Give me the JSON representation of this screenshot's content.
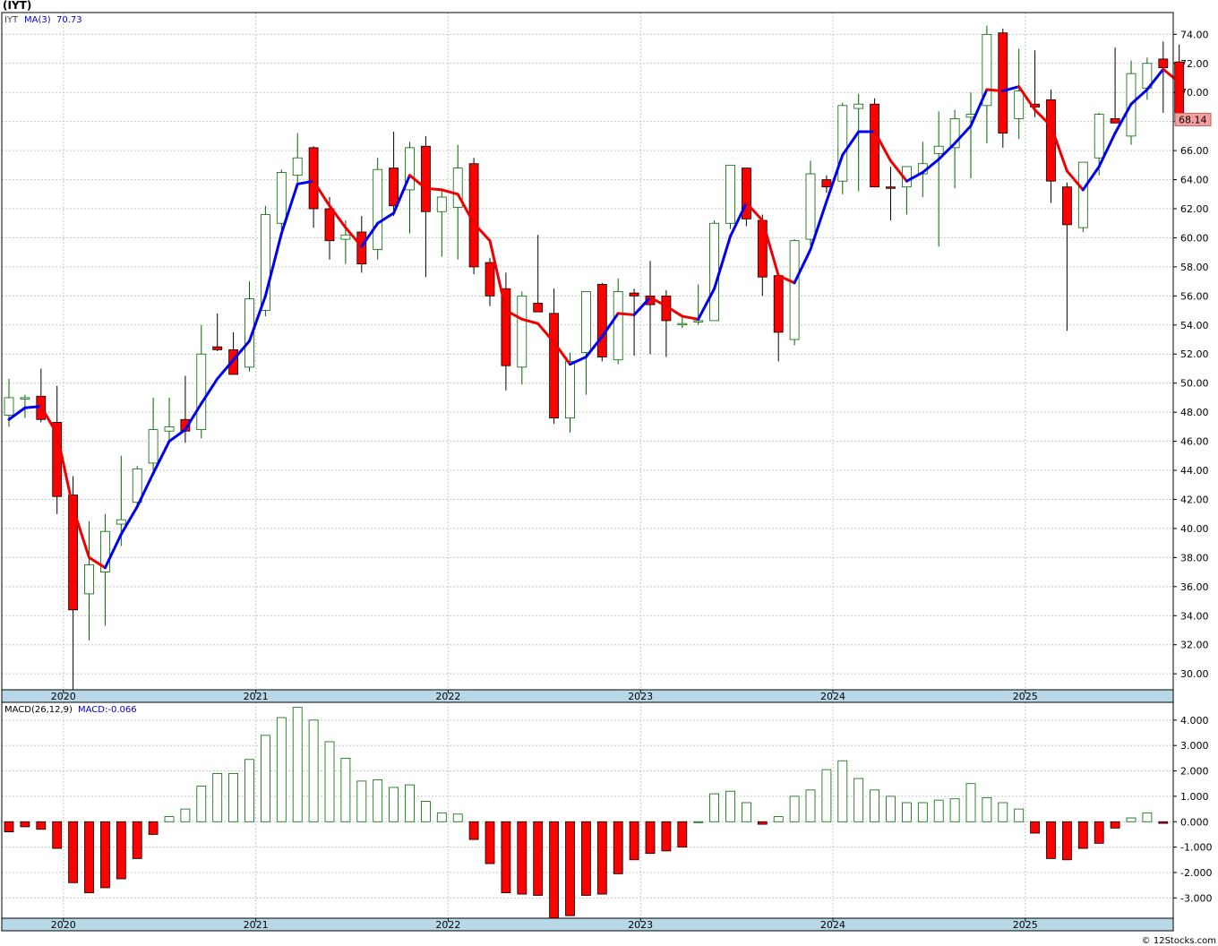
{
  "title": "(IYT)",
  "credit": "© 12Stocks.com",
  "colors": {
    "up_ma": "#0000ee",
    "down_ma": "#ee0000",
    "up_candle_border": "#006600",
    "down_candle": "#ff0000",
    "axis_band": "#b8d8e8",
    "grid": "#c8c8c8"
  },
  "chart_data": [
    {
      "type": "candlestick",
      "symbol": "IYT",
      "legend": {
        "symbol": "IYT",
        "ma_label": "MA(3)",
        "ma_value": "70.73"
      },
      "last_price_label": "68.14",
      "ylim": [
        28.9,
        75.5
      ],
      "yticks": [
        "74.00",
        "72.00",
        "70.00",
        "68.00",
        "66.00",
        "64.00",
        "62.00",
        "60.00",
        "58.00",
        "56.00",
        "54.00",
        "52.00",
        "50.00",
        "48.00",
        "46.00",
        "44.00",
        "42.00",
        "40.00",
        "38.00",
        "36.00",
        "34.00",
        "32.00",
        "30.00"
      ],
      "x_years": [
        {
          "label": "2020",
          "index": 2
        },
        {
          "label": "2021",
          "index": 14
        },
        {
          "label": "2022",
          "index": 26
        },
        {
          "label": "2023",
          "index": 38
        },
        {
          "label": "2024",
          "index": 50
        },
        {
          "label": "2025",
          "index": 62
        }
      ],
      "ohlc": [
        [
          47.8,
          50.3,
          47.0,
          49.0
        ],
        [
          49.0,
          49.2,
          47.6,
          49.0
        ],
        [
          49.1,
          51.0,
          47.3,
          47.5
        ],
        [
          47.3,
          49.8,
          41.0,
          42.2
        ],
        [
          42.3,
          43.6,
          28.4,
          34.4
        ],
        [
          35.5,
          40.5,
          32.3,
          37.5
        ],
        [
          37.0,
          41.0,
          33.3,
          39.8
        ],
        [
          40.3,
          45.0,
          38.8,
          40.6
        ],
        [
          41.8,
          44.3,
          41.6,
          44.1
        ],
        [
          44.5,
          49.0,
          44.0,
          46.8
        ],
        [
          46.7,
          49.0,
          46.0,
          47.0
        ],
        [
          47.5,
          50.5,
          45.9,
          46.7
        ],
        [
          46.8,
          54.0,
          46.2,
          52.0
        ],
        [
          52.5,
          54.8,
          52.2,
          52.3
        ],
        [
          52.3,
          53.5,
          50.6,
          50.6
        ],
        [
          51.1,
          57.0,
          50.8,
          55.8
        ],
        [
          55.0,
          62.2,
          54.6,
          61.6
        ],
        [
          61.0,
          64.7,
          60.1,
          64.5
        ],
        [
          64.3,
          67.2,
          63.8,
          65.5
        ],
        [
          66.2,
          66.3,
          60.7,
          62.0
        ],
        [
          62.0,
          62.8,
          58.5,
          59.8
        ],
        [
          59.9,
          61.2,
          58.2,
          60.2
        ],
        [
          60.4,
          61.5,
          57.6,
          58.2
        ],
        [
          59.2,
          65.5,
          58.5,
          64.7
        ],
        [
          64.8,
          67.3,
          61.5,
          62.2
        ],
        [
          63.3,
          66.6,
          60.3,
          66.2
        ],
        [
          66.3,
          67.0,
          57.3,
          61.8
        ],
        [
          61.8,
          63.2,
          58.7,
          62.8
        ],
        [
          62.1,
          66.4,
          58.5,
          64.8
        ],
        [
          65.1,
          65.5,
          57.5,
          58.0
        ],
        [
          58.3,
          58.6,
          55.3,
          56.0
        ],
        [
          56.5,
          57.6,
          49.5,
          51.2
        ],
        [
          51.1,
          56.3,
          49.9,
          56.0
        ],
        [
          55.5,
          60.2,
          55.0,
          54.9
        ],
        [
          54.8,
          56.5,
          47.2,
          47.6
        ],
        [
          47.6,
          52.1,
          46.6,
          51.5
        ],
        [
          52.1,
          56.3,
          49.2,
          56.3
        ],
        [
          56.8,
          56.9,
          51.5,
          51.8
        ],
        [
          51.6,
          57.2,
          51.3,
          56.3
        ],
        [
          56.2,
          56.5,
          51.9,
          56.0
        ],
        [
          56.0,
          58.4,
          52.0,
          55.4
        ],
        [
          56.0,
          56.4,
          51.8,
          54.3
        ],
        [
          54.1,
          54.5,
          53.8,
          54.1
        ],
        [
          54.3,
          56.8,
          54.0,
          54.3
        ],
        [
          54.3,
          61.2,
          54.3,
          61.0
        ],
        [
          61.0,
          65.0,
          60.6,
          65.0
        ],
        [
          64.8,
          64.8,
          60.8,
          61.3
        ],
        [
          61.2,
          61.6,
          56.0,
          57.3
        ],
        [
          57.4,
          57.4,
          51.5,
          53.5
        ],
        [
          53.0,
          59.9,
          52.6,
          59.8
        ],
        [
          59.9,
          65.3,
          59.5,
          64.4
        ],
        [
          64.0,
          64.3,
          63.1,
          63.5
        ],
        [
          63.9,
          69.3,
          63.0,
          69.1
        ],
        [
          68.9,
          69.9,
          63.2,
          69.2
        ],
        [
          69.2,
          69.6,
          63.5,
          63.5
        ],
        [
          63.5,
          64.9,
          61.2,
          63.4
        ],
        [
          63.5,
          64.9,
          61.6,
          64.9
        ],
        [
          64.4,
          66.6,
          62.8,
          65.1
        ],
        [
          65.8,
          68.7,
          59.4,
          66.3
        ],
        [
          66.2,
          68.8,
          63.4,
          68.2
        ],
        [
          68.3,
          70.0,
          64.1,
          68.5
        ],
        [
          69.1,
          74.6,
          66.5,
          74.0
        ],
        [
          74.1,
          74.4,
          66.2,
          67.2
        ],
        [
          68.2,
          73.0,
          66.8,
          70.1
        ],
        [
          69.2,
          72.9,
          68.3,
          69.0
        ],
        [
          69.5,
          70.2,
          62.4,
          63.9
        ],
        [
          63.5,
          63.8,
          53.6,
          60.9
        ],
        [
          60.7,
          65.2,
          60.4,
          65.2
        ],
        [
          65.5,
          68.6,
          64.3,
          68.5
        ],
        [
          68.2,
          73.1,
          67.9,
          67.9
        ],
        [
          67.0,
          72.2,
          66.4,
          71.3
        ],
        [
          70.3,
          72.4,
          69.5,
          72.0
        ],
        [
          72.3,
          73.5,
          68.6,
          71.7
        ],
        [
          72.1,
          73.3,
          68.1,
          68.1
        ]
      ],
      "ma3": [
        47.5,
        48.3,
        48.4,
        46.5,
        41.4,
        38.0,
        37.3,
        39.6,
        41.5,
        43.8,
        46.0,
        46.8,
        48.6,
        50.3,
        51.6,
        52.9,
        56.0,
        60.3,
        63.7,
        63.9,
        62.2,
        60.7,
        59.4,
        61.0,
        61.7,
        64.3,
        63.4,
        63.3,
        63.0,
        61.0,
        59.8,
        55.0,
        54.4,
        54.1,
        52.8,
        51.3,
        51.8,
        53.2,
        54.8,
        54.7,
        55.9,
        55.3,
        54.6,
        54.4,
        56.5,
        60.1,
        62.4,
        61.2,
        57.4,
        56.9,
        59.2,
        62.5,
        65.7,
        67.3,
        67.3,
        65.3,
        63.9,
        64.5,
        65.4,
        66.5,
        67.7,
        70.2,
        70.1,
        70.4,
        68.8,
        67.7,
        64.6,
        63.3,
        64.9,
        67.2,
        69.2,
        70.2,
        71.6,
        70.7
      ]
    },
    {
      "type": "bar",
      "indicator": "MACD",
      "legend": {
        "label": "MACD(26,12,9)",
        "value": "MACD:-0.066"
      },
      "ylim": [
        -3.8,
        4.7
      ],
      "yticks": [
        "4.000",
        "3.000",
        "2.000",
        "1.000",
        "0.000",
        "-1.000",
        "-2.000",
        "-3.000"
      ],
      "values": [
        -0.4,
        -0.2,
        -0.3,
        -1.05,
        -2.4,
        -2.8,
        -2.6,
        -2.25,
        -1.45,
        -0.5,
        0.2,
        0.5,
        1.4,
        1.9,
        1.9,
        2.45,
        3.4,
        4.1,
        4.5,
        4.0,
        3.15,
        2.5,
        1.6,
        1.65,
        1.35,
        1.45,
        0.8,
        0.35,
        0.3,
        -0.7,
        -1.65,
        -2.8,
        -2.85,
        -2.9,
        -3.8,
        -3.7,
        -2.9,
        -2.85,
        -2.05,
        -1.5,
        -1.25,
        -1.15,
        -1.0,
        0.0,
        1.1,
        1.2,
        0.75,
        -0.1,
        0.2,
        1.0,
        1.25,
        2.05,
        2.4,
        1.7,
        1.25,
        1.0,
        0.75,
        0.75,
        0.85,
        0.9,
        1.5,
        0.95,
        0.75,
        0.5,
        -0.45,
        -1.45,
        -1.5,
        -1.05,
        -0.85,
        -0.25,
        0.15,
        0.35,
        -0.066
      ]
    }
  ]
}
